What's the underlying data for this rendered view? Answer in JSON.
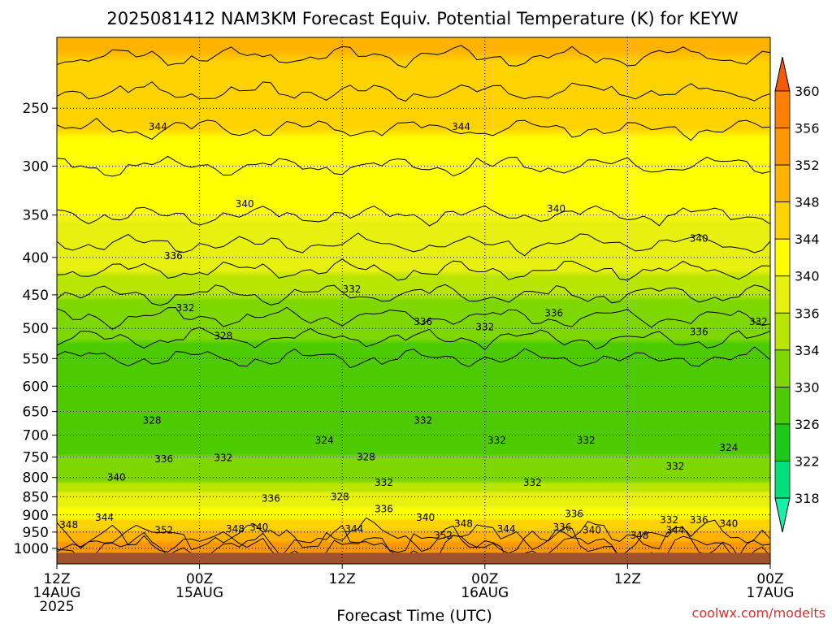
{
  "chart_data": {
    "type": "heatmap",
    "title": "2025081412 NAM3KM Forecast Equiv. Potential Temperature (K) for KEYW",
    "xlabel": "Forecast Time (UTC)",
    "ylabel": "",
    "credit": "coolwx.com/modelts",
    "y_axis": {
      "scale": "pressure",
      "range": [
        1050,
        200
      ],
      "ticks": [
        250,
        300,
        350,
        400,
        450,
        500,
        550,
        600,
        650,
        700,
        750,
        800,
        850,
        900,
        950,
        1000
      ],
      "tick_labels": [
        "250",
        "300",
        "350",
        "400",
        "450",
        "500",
        "550",
        "600",
        "650",
        "700",
        "750",
        "800",
        "850",
        "900",
        "950",
        "1000"
      ],
      "gridlines": "dotted"
    },
    "x_axis": {
      "range_hours": [
        0,
        60
      ],
      "ticks": [
        {
          "hour": 0,
          "line1": "12Z",
          "line2": "14AUG",
          "line3": "2025"
        },
        {
          "hour": 12,
          "line1": "00Z",
          "line2": "15AUG",
          "line3": ""
        },
        {
          "hour": 24,
          "line1": "12Z",
          "line2": "",
          "line3": ""
        },
        {
          "hour": 36,
          "line1": "00Z",
          "line2": "16AUG",
          "line3": ""
        },
        {
          "hour": 48,
          "line1": "12Z",
          "line2": "",
          "line3": ""
        },
        {
          "hour": 60,
          "line1": "00Z",
          "line2": "17AUG",
          "line3": ""
        }
      ],
      "gridlines": "dotted"
    },
    "colorbar": {
      "labels": [
        360,
        356,
        352,
        348,
        344,
        340,
        336,
        334,
        330,
        326,
        322,
        318
      ],
      "colors": [
        "#f25a0a",
        "#ff7f00",
        "#ff9800",
        "#ffb300",
        "#ffd300",
        "#ffff00",
        "#e8f010",
        "#b8e600",
        "#7ed800",
        "#4ccc00",
        "#1ec818",
        "#00e07a",
        "#18f0a8"
      ],
      "extend": "both"
    },
    "profile": [
      {
        "p": 200,
        "theta_e": 349
      },
      {
        "p": 250,
        "theta_e": 345
      },
      {
        "p": 300,
        "theta_e": 342
      },
      {
        "p": 350,
        "theta_e": 340
      },
      {
        "p": 400,
        "theta_e": 337
      },
      {
        "p": 450,
        "theta_e": 334
      },
      {
        "p": 500,
        "theta_e": 331
      },
      {
        "p": 550,
        "theta_e": 328
      },
      {
        "p": 600,
        "theta_e": 327
      },
      {
        "p": 650,
        "theta_e": 327
      },
      {
        "p": 700,
        "theta_e": 328
      },
      {
        "p": 750,
        "theta_e": 330
      },
      {
        "p": 800,
        "theta_e": 333
      },
      {
        "p": 850,
        "theta_e": 337
      },
      {
        "p": 900,
        "theta_e": 342
      },
      {
        "p": 950,
        "theta_e": 349
      },
      {
        "p": 1000,
        "theta_e": 354
      }
    ],
    "contour_labels": [
      {
        "hour": 8.5,
        "p": 265,
        "text": "344"
      },
      {
        "hour": 34.0,
        "p": 265,
        "text": "344"
      },
      {
        "hour": 15.8,
        "p": 338,
        "text": "340"
      },
      {
        "hour": 42.0,
        "p": 343,
        "text": "340"
      },
      {
        "hour": 54.0,
        "p": 377,
        "text": "340"
      },
      {
        "hour": 9.8,
        "p": 398,
        "text": "336"
      },
      {
        "hour": 24.8,
        "p": 442,
        "text": "332"
      },
      {
        "hour": 10.8,
        "p": 469,
        "text": "332"
      },
      {
        "hour": 41.8,
        "p": 477,
        "text": "336"
      },
      {
        "hour": 30.8,
        "p": 490,
        "text": "336"
      },
      {
        "hour": 36.0,
        "p": 498,
        "text": "332"
      },
      {
        "hour": 54.0,
        "p": 506,
        "text": "336"
      },
      {
        "hour": 59.0,
        "p": 490,
        "text": "332"
      },
      {
        "hour": 14.0,
        "p": 512,
        "text": "328"
      },
      {
        "hour": 8.0,
        "p": 668,
        "text": "328"
      },
      {
        "hour": 30.8,
        "p": 668,
        "text": "332"
      },
      {
        "hour": 22.5,
        "p": 712,
        "text": "324"
      },
      {
        "hour": 37.0,
        "p": 712,
        "text": "332"
      },
      {
        "hour": 44.5,
        "p": 712,
        "text": "332"
      },
      {
        "hour": 56.5,
        "p": 728,
        "text": "324"
      },
      {
        "hour": 9.0,
        "p": 755,
        "text": "336"
      },
      {
        "hour": 14.0,
        "p": 752,
        "text": "332"
      },
      {
        "hour": 26.0,
        "p": 750,
        "text": "328"
      },
      {
        "hour": 52.0,
        "p": 772,
        "text": "332"
      },
      {
        "hour": 5.0,
        "p": 800,
        "text": "340"
      },
      {
        "hour": 27.5,
        "p": 813,
        "text": "332"
      },
      {
        "hour": 40.0,
        "p": 813,
        "text": "332"
      },
      {
        "hour": 18.0,
        "p": 855,
        "text": "336"
      },
      {
        "hour": 23.8,
        "p": 850,
        "text": "328"
      },
      {
        "hour": 27.5,
        "p": 883,
        "text": "336"
      },
      {
        "hour": 43.5,
        "p": 897,
        "text": "336"
      },
      {
        "hour": 4.0,
        "p": 908,
        "text": "344"
      },
      {
        "hour": 31.0,
        "p": 908,
        "text": "340"
      },
      {
        "hour": 51.5,
        "p": 915,
        "text": "332"
      },
      {
        "hour": 54.0,
        "p": 915,
        "text": "336"
      },
      {
        "hour": 1.0,
        "p": 929,
        "text": "348"
      },
      {
        "hour": 9.0,
        "p": 944,
        "text": "352"
      },
      {
        "hour": 15.0,
        "p": 940,
        "text": "348"
      },
      {
        "hour": 17.0,
        "p": 936,
        "text": "340"
      },
      {
        "hour": 25.0,
        "p": 940,
        "text": "344"
      },
      {
        "hour": 34.2,
        "p": 925,
        "text": "348"
      },
      {
        "hour": 32.5,
        "p": 960,
        "text": "352"
      },
      {
        "hour": 37.8,
        "p": 940,
        "text": "344"
      },
      {
        "hour": 42.5,
        "p": 936,
        "text": "336"
      },
      {
        "hour": 45.0,
        "p": 944,
        "text": "340"
      },
      {
        "hour": 49.0,
        "p": 960,
        "text": "348"
      },
      {
        "hour": 52.0,
        "p": 944,
        "text": "344"
      },
      {
        "hour": 56.5,
        "p": 925,
        "text": "340"
      }
    ]
  }
}
